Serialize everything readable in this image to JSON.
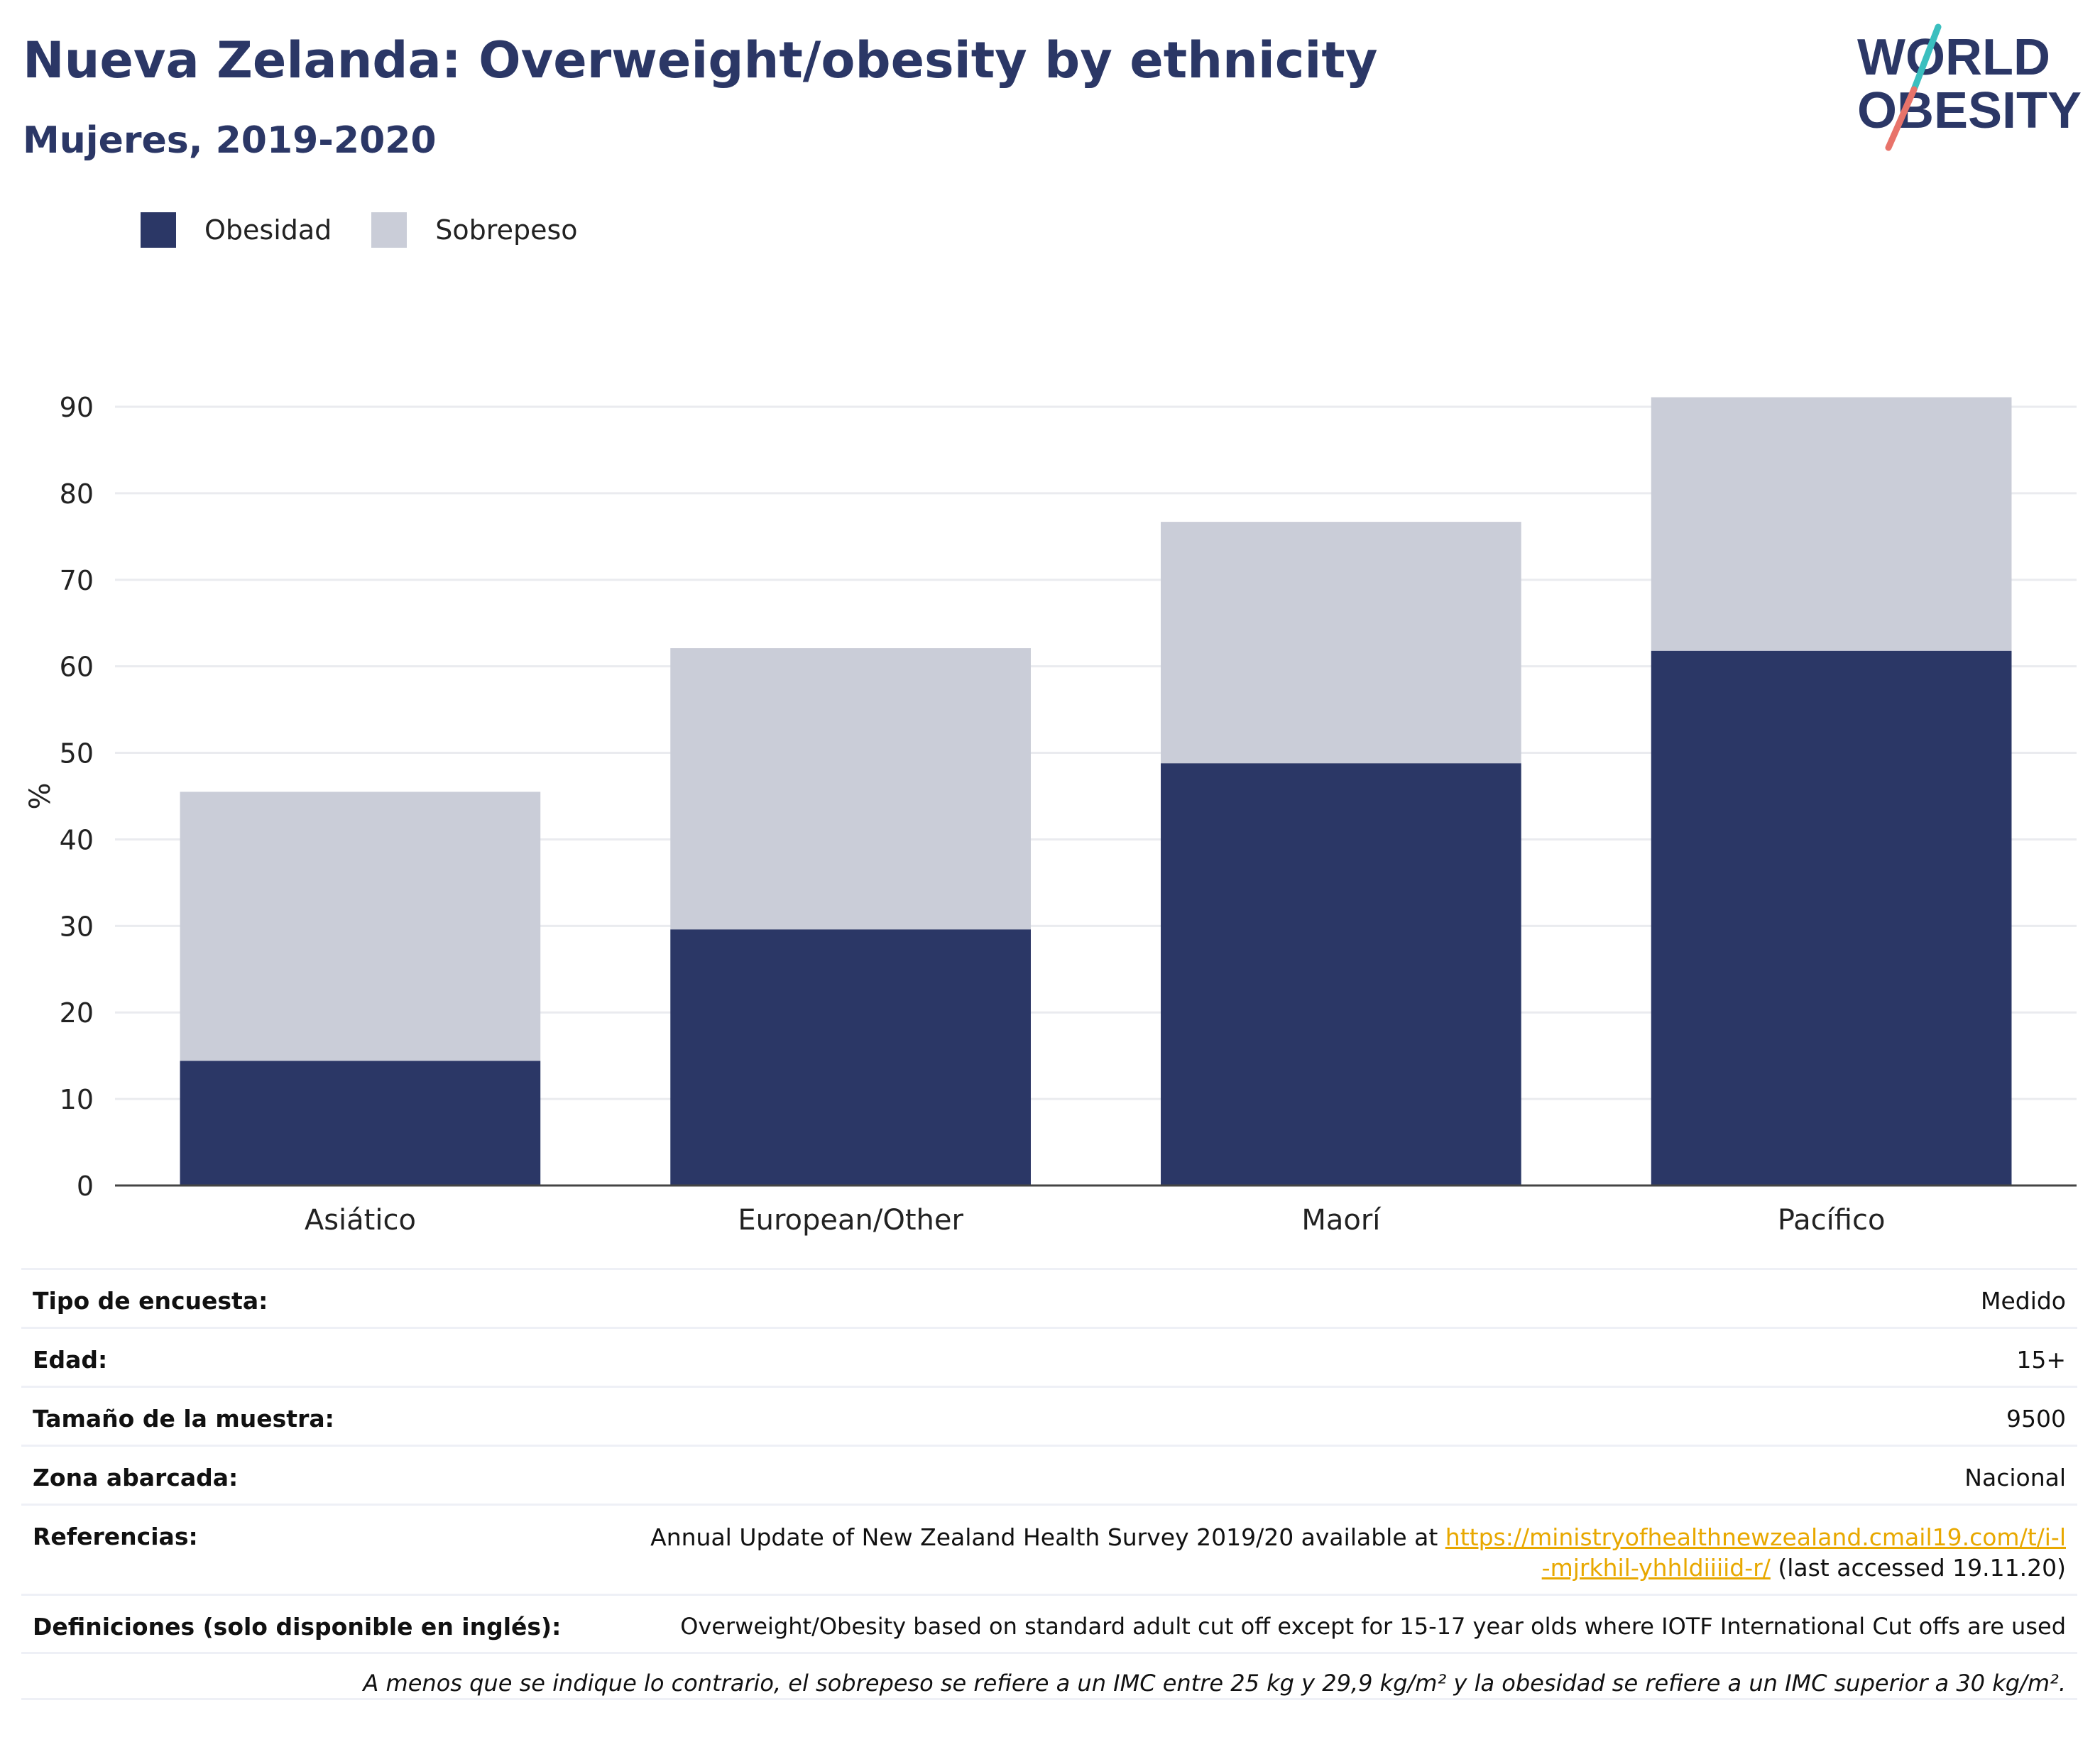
{
  "title": "Nueva Zelanda: Overweight/obesity by ethnicity",
  "subtitle": "Mujeres, 2019-2020",
  "logo": {
    "line1": "WORLD",
    "line2": "OBESITY"
  },
  "legend": [
    {
      "label": "Obesidad",
      "color": "#2b3766"
    },
    {
      "label": "Sobrepeso",
      "color": "#cacdd8"
    }
  ],
  "chart_data": {
    "type": "bar",
    "stacked": true,
    "categories": [
      "Asiático",
      "European/Other",
      "Maorí",
      "Pacífico"
    ],
    "series": [
      {
        "name": "Obesidad",
        "color": "#2b3766",
        "values": [
          14.4,
          29.6,
          48.8,
          61.8
        ]
      },
      {
        "name": "Sobrepeso",
        "color": "#cacdd8",
        "values": [
          31.1,
          32.5,
          27.9,
          29.3
        ]
      }
    ],
    "ylabel": "%",
    "ylim": [
      0,
      90
    ],
    "yticks": [
      0,
      10,
      20,
      30,
      40,
      50,
      60,
      70,
      80,
      90
    ],
    "grid": true,
    "legend_position": "top-left"
  },
  "info": {
    "survey_type": {
      "label": "Tipo de encuesta:",
      "value": "Medido"
    },
    "age": {
      "label": "Edad:",
      "value": "15+"
    },
    "sample_size": {
      "label": "Tamaño de la muestra:",
      "value": "9500"
    },
    "area": {
      "label": "Zona abarcada:",
      "value": "Nacional"
    },
    "references": {
      "label": "Referencias:",
      "text": "Annual Update of New Zealand Health Survey 2019/20 available at ",
      "link": "https://ministryofhealthnewzealand.cmail19.com/t/i-l-mjrkhil-yhhldiiiid-r/",
      "suffix": " (last accessed 19.11.20)"
    },
    "definitions": {
      "label": "Definiciones (solo disponible en inglés):",
      "value": "Overweight/Obesity based on standard adult cut off except for 15-17 year olds where IOTF International Cut offs are used"
    },
    "note": "A menos que se indique lo contrario, el sobrepeso se refiere a un IMC entre 25 kg y 29,9 kg/m² y la obesidad se refiere a un IMC superior a 30 kg/m²."
  },
  "colors": {
    "brand_navy": "#2b3766",
    "light_bar": "#cacdd8",
    "logo_teal": "#3bbfbf",
    "logo_coral": "#e8736a",
    "link": "#e8a800"
  }
}
